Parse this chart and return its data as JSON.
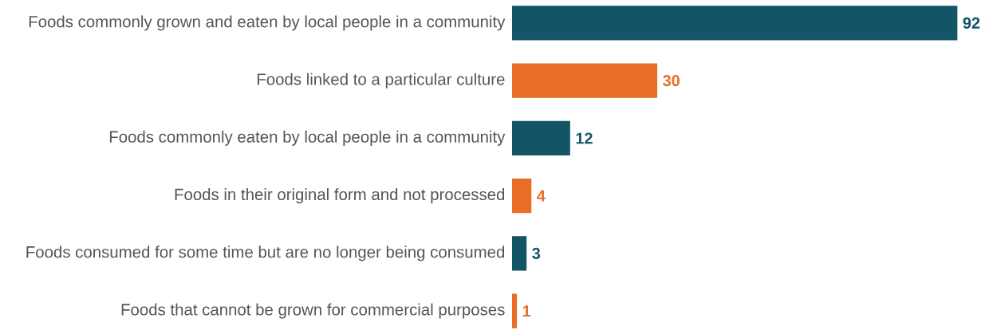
{
  "chart_data": {
    "type": "bar",
    "orientation": "horizontal",
    "categories": [
      "Foods commonly grown and eaten by local people in a community",
      "Foods linked to a particular culture",
      "Foods commonly eaten by local people in a community",
      "Foods in their original form and not processed",
      "Foods consumed for some time but are no longer being consumed",
      "Foods that cannot be grown for commercial purposes"
    ],
    "values": [
      92,
      30,
      12,
      4,
      3,
      1
    ],
    "colors": [
      "#135466",
      "#e86d25",
      "#135466",
      "#e86d25",
      "#135466",
      "#e86d25"
    ],
    "data_labels": true
  }
}
